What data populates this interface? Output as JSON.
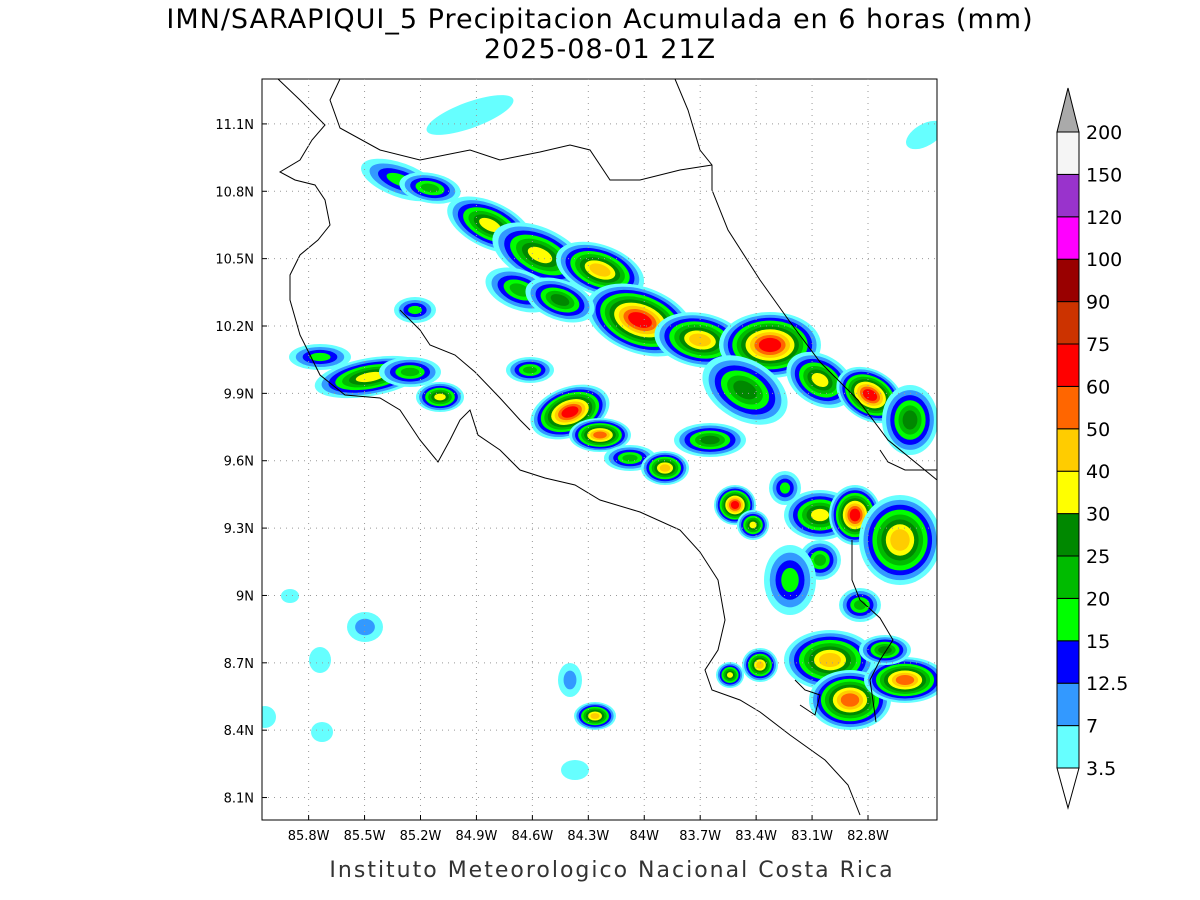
{
  "title": "IMN/SARAPIQUI_5 Precipitacion Acumulada en 6 horas (mm)",
  "subtitle": "2025-08-01 21Z",
  "footer": "Instituto Meteorologico Nacional Costa Rica",
  "map": {
    "xlim": [
      -86.05,
      -82.43
    ],
    "ylim": [
      8.0,
      11.3
    ],
    "grid": true,
    "xticks": [
      {
        "value": -85.8,
        "label": "85.8W"
      },
      {
        "value": -85.5,
        "label": "85.5W"
      },
      {
        "value": -85.2,
        "label": "85.2W"
      },
      {
        "value": -84.9,
        "label": "84.9W"
      },
      {
        "value": -84.6,
        "label": "84.6W"
      },
      {
        "value": -84.3,
        "label": "84.3W"
      },
      {
        "value": -84.0,
        "label": "84W"
      },
      {
        "value": -83.7,
        "label": "83.7W"
      },
      {
        "value": -83.4,
        "label": "83.4W"
      },
      {
        "value": -83.1,
        "label": "83.1W"
      },
      {
        "value": -82.8,
        "label": "82.8W"
      }
    ],
    "yticks": [
      {
        "value": 8.1,
        "label": "8.1N"
      },
      {
        "value": 8.4,
        "label": "8.4N"
      },
      {
        "value": 8.7,
        "label": "8.7N"
      },
      {
        "value": 9.0,
        "label": "9N"
      },
      {
        "value": 9.3,
        "label": "9.3N"
      },
      {
        "value": 9.6,
        "label": "9.6N"
      },
      {
        "value": 9.9,
        "label": "9.9N"
      },
      {
        "value": 10.2,
        "label": "10.2N"
      },
      {
        "value": 10.5,
        "label": "10.5N"
      },
      {
        "value": 10.8,
        "label": "10.8N"
      },
      {
        "value": 11.1,
        "label": "11.1N"
      }
    ]
  },
  "colorbar": {
    "levels": [
      3.5,
      7,
      12.5,
      15,
      20,
      25,
      30,
      40,
      50,
      60,
      75,
      90,
      100,
      120,
      150,
      200
    ],
    "colors": [
      "#66ffff",
      "#3399ff",
      "#0000ff",
      "#00ff00",
      "#00bb00",
      "#008800",
      "#ffff00",
      "#ffcc00",
      "#ff6600",
      "#ff0000",
      "#cc3300",
      "#990000",
      "#ff00ff",
      "#9933cc",
      "#f5f5f5"
    ],
    "under_color": "#ffffff",
    "over_color": "#aaaaaa"
  }
}
